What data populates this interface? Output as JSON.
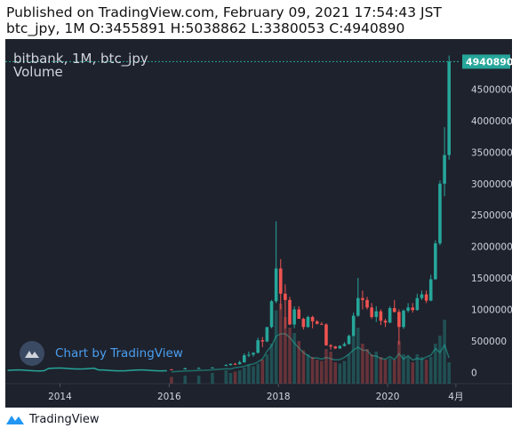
{
  "header": {
    "published": "Published on TradingView.com, February 09, 2021 17:54:43 JST",
    "ohlc": "btc_jpy, 1M O:3455891 H:5038862 L:3380053 C:4940890"
  },
  "legend": {
    "symbol": "bitbank, 1M, btc_jpy",
    "volume": "Volume"
  },
  "watermark": {
    "text": "Chart by TradingView",
    "icon": "tradingview-logo-icon"
  },
  "footer": {
    "text": "TradingView",
    "icon": "tradingview-logo-icon"
  },
  "colors": {
    "background": "#1e222d",
    "up": "#26a69a",
    "down": "#ef5350",
    "last_price_label": "#26a69a",
    "axis_text": "#d1d4dc",
    "volume_ma": "#1f6f6a"
  },
  "chart_data": {
    "type": "candlestick",
    "title": "bitbank, 1M, btc_jpy",
    "x_ticks": [
      "2014",
      "2016",
      "2018",
      "2020",
      "4月"
    ],
    "y_ticks": [
      0,
      500000,
      1000000,
      1500000,
      2000000,
      2500000,
      3000000,
      3500000,
      4000000,
      4500000
    ],
    "ylim": [
      -180000,
      5300000
    ],
    "last_price": 4940890,
    "last_candle": {
      "open": 3455891,
      "high": 5038862,
      "low": 3380053,
      "close": 4940890
    },
    "series": [
      {
        "name": "btc_jpy",
        "x": [
          "2016-01",
          "2016-04",
          "2016-07",
          "2016-10",
          "2017-01",
          "2017-02",
          "2017-03",
          "2017-04",
          "2017-05",
          "2017-06",
          "2017-07",
          "2017-08",
          "2017-09",
          "2017-10",
          "2017-11",
          "2017-12",
          "2018-01",
          "2018-02",
          "2018-03",
          "2018-04",
          "2018-05",
          "2018-06",
          "2018-07",
          "2018-08",
          "2018-09",
          "2018-10",
          "2018-11",
          "2018-12",
          "2019-01",
          "2019-02",
          "2019-03",
          "2019-04",
          "2019-05",
          "2019-06",
          "2019-07",
          "2019-08",
          "2019-09",
          "2019-10",
          "2019-11",
          "2019-12",
          "2020-01",
          "2020-02",
          "2020-03",
          "2020-04",
          "2020-05",
          "2020-06",
          "2020-07",
          "2020-08",
          "2020-09",
          "2020-10",
          "2020-11",
          "2020-12",
          "2021-01",
          "2021-02"
        ],
        "open": [
          48000,
          47000,
          65000,
          67000,
          110000,
          115000,
          135000,
          130000,
          160000,
          270000,
          280000,
          310000,
          510000,
          490000,
          720000,
          1130000,
          1650000,
          1250000,
          1150000,
          760000,
          1000000,
          850000,
          720000,
          880000,
          810000,
          770000,
          760000,
          430000,
          410000,
          380000,
          420000,
          450000,
          580000,
          900000,
          1180000,
          1150000,
          1030000,
          880000,
          970000,
          820000,
          790000,
          1020000,
          960000,
          720000,
          980000,
          1030000,
          990000,
          1180000,
          1240000,
          1140000,
          1480000,
          2050000,
          3000000,
          3455891
        ],
        "high": [
          50000,
          72000,
          80000,
          80000,
          130000,
          140000,
          150000,
          185000,
          300000,
          330000,
          320000,
          550000,
          560000,
          700000,
          1150000,
          2400000,
          1800000,
          1400000,
          1200000,
          1050000,
          1050000,
          870000,
          900000,
          900000,
          830000,
          800000,
          780000,
          450000,
          420000,
          430000,
          480000,
          600000,
          950000,
          1500000,
          1300000,
          1200000,
          1100000,
          1050000,
          1000000,
          850000,
          1050000,
          1150000,
          1000000,
          1000000,
          1100000,
          1100000,
          1250000,
          1300000,
          1300000,
          1550000,
          2100000,
          3050000,
          3900000,
          5038862
        ],
        "low": [
          40000,
          45000,
          60000,
          60000,
          100000,
          105000,
          115000,
          120000,
          150000,
          240000,
          250000,
          300000,
          400000,
          480000,
          700000,
          1100000,
          1000000,
          700000,
          750000,
          700000,
          850000,
          680000,
          710000,
          700000,
          760000,
          760000,
          420000,
          360000,
          370000,
          370000,
          410000,
          440000,
          570000,
          880000,
          1000000,
          1000000,
          850000,
          800000,
          750000,
          720000,
          780000,
          950000,
          440000,
          690000,
          950000,
          950000,
          980000,
          1150000,
          1100000,
          1130000,
          1470000,
          2020000,
          2800000,
          3380053
        ],
        "close": [
          47000,
          65000,
          67000,
          78000,
          115000,
          135000,
          130000,
          160000,
          270000,
          280000,
          310000,
          510000,
          490000,
          720000,
          1130000,
          1650000,
          1250000,
          1150000,
          760000,
          1000000,
          850000,
          720000,
          880000,
          810000,
          770000,
          760000,
          430000,
          410000,
          380000,
          420000,
          450000,
          580000,
          900000,
          1180000,
          1150000,
          1030000,
          880000,
          970000,
          820000,
          790000,
          1020000,
          960000,
          720000,
          980000,
          1030000,
          990000,
          1180000,
          1240000,
          1140000,
          1480000,
          2050000,
          3000000,
          3455891,
          4940890
        ]
      },
      {
        "name": "Volume",
        "values": [
          5,
          6,
          6,
          8,
          10,
          8,
          9,
          10,
          12,
          14,
          13,
          15,
          18,
          22,
          30,
          55,
          60,
          50,
          42,
          38,
          32,
          25,
          22,
          20,
          18,
          17,
          26,
          24,
          16,
          15,
          17,
          22,
          36,
          42,
          30,
          26,
          22,
          24,
          20,
          18,
          19,
          18,
          32,
          22,
          20,
          16,
          22,
          20,
          18,
          20,
          30,
          36,
          48,
          16
        ]
      }
    ]
  }
}
